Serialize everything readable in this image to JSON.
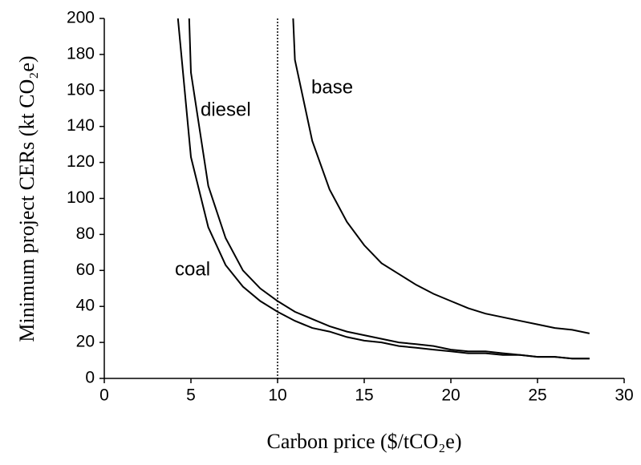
{
  "chart_data": {
    "type": "line",
    "x_label": "Carbon price ($/tCO₂e)",
    "y_label": "Minimum project CERs (kt CO₂e)",
    "xlim": [
      0,
      30
    ],
    "xticks": [
      0,
      5,
      10,
      15,
      20,
      25,
      30
    ],
    "ylim": [
      0,
      200
    ],
    "yticks": [
      0,
      20,
      40,
      60,
      80,
      100,
      120,
      140,
      160,
      180,
      200
    ],
    "grid": false,
    "reference_line_x": 10,
    "series": [
      {
        "name": "coal",
        "color": "#000000",
        "x": [
          4.25,
          5,
          6,
          7,
          8,
          9,
          10,
          11,
          12,
          13,
          14,
          15,
          16,
          17,
          18,
          19,
          20,
          21,
          22,
          23,
          24,
          25,
          26,
          27,
          28
        ],
        "values": [
          200,
          123,
          84,
          63,
          51,
          43,
          37,
          32,
          28,
          26,
          23,
          21,
          20,
          18,
          17,
          16,
          15,
          14,
          14,
          13,
          13,
          12,
          12,
          11,
          11
        ]
      },
      {
        "name": "diesel",
        "color": "#000000",
        "x": [
          4.9,
          5,
          6,
          7,
          8,
          9,
          10,
          11,
          12,
          13,
          14,
          15,
          16,
          17,
          18,
          19,
          20,
          21,
          22,
          23,
          24,
          25,
          26,
          27,
          28
        ],
        "values": [
          200,
          170,
          107,
          78,
          60,
          50,
          43,
          37,
          33,
          29,
          26,
          24,
          22,
          20,
          19,
          18,
          16,
          15,
          15,
          14,
          13,
          12,
          12,
          11,
          11
        ]
      },
      {
        "name": "base",
        "color": "#000000",
        "x": [
          10.9,
          11,
          12,
          13,
          14,
          15,
          16,
          17,
          18,
          19,
          20,
          21,
          22,
          23,
          24,
          25,
          26,
          27,
          28
        ],
        "values": [
          200,
          177,
          132,
          105,
          87,
          74,
          64,
          58,
          52,
          47,
          43,
          39,
          36,
          34,
          32,
          30,
          28,
          27,
          25
        ]
      }
    ]
  }
}
